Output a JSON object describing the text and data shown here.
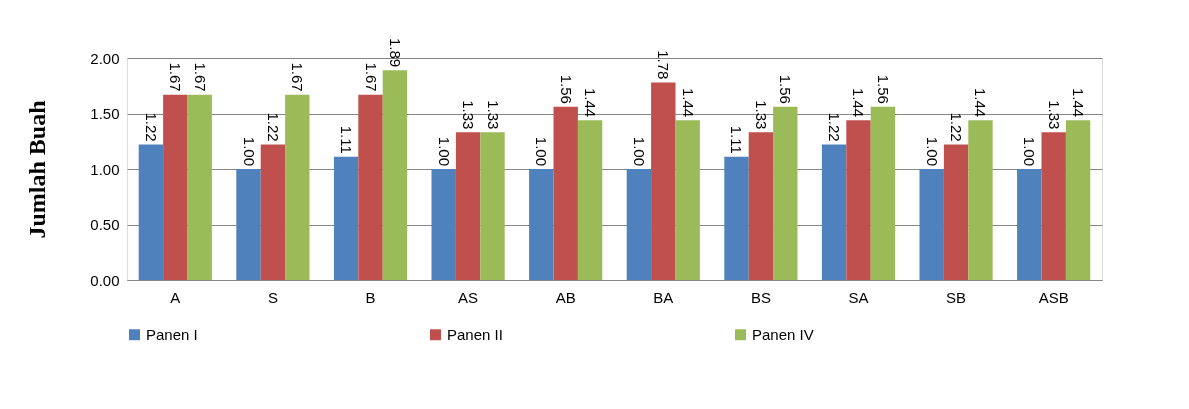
{
  "chart_data": {
    "type": "bar",
    "ylabel": "Jumlah Buah",
    "categories": [
      "A",
      "S",
      "B",
      "AS",
      "AB",
      "BA",
      "BS",
      "SA",
      "SB",
      "ASB"
    ],
    "series": [
      {
        "name": "Panen I",
        "color": "#4f81bd",
        "values": [
          1.22,
          1.0,
          1.11,
          1.0,
          1.0,
          1.0,
          1.11,
          1.22,
          1.0,
          1.0
        ],
        "value_labels": [
          "1.22",
          "1.00",
          "1.11",
          "1.00",
          "1.00",
          "1.00",
          "1.11",
          "1.22",
          "1.00",
          "1.00"
        ]
      },
      {
        "name": "Panen II",
        "color": "#c0504d",
        "values": [
          1.67,
          1.22,
          1.67,
          1.33,
          1.56,
          1.78,
          1.33,
          1.44,
          1.22,
          1.33
        ],
        "value_labels": [
          "1.67",
          "1.22",
          "1.67",
          "1.33",
          "1.56",
          "1.78",
          "1.33",
          "1.44",
          "1.22",
          "1.33"
        ]
      },
      {
        "name": "Panen IV",
        "color": "#9bbb59",
        "values": [
          1.67,
          1.67,
          1.89,
          1.33,
          1.44,
          1.44,
          1.56,
          1.56,
          1.44,
          1.44
        ],
        "value_labels": [
          "1.67",
          "1.67",
          "1.89",
          "1.33",
          "1.44",
          "1.44",
          "1.56",
          "1.56",
          "1.44",
          "1.44"
        ]
      }
    ],
    "ylim": [
      0,
      2
    ],
    "yticks": [
      {
        "value": 0,
        "label": "0.00"
      },
      {
        "value": 0.5,
        "label": "0.50"
      },
      {
        "value": 1,
        "label": "1.00"
      },
      {
        "value": 1.5,
        "label": "1.50"
      },
      {
        "value": 2,
        "label": "2.00"
      }
    ],
    "grid": "y",
    "legend": "bottom"
  }
}
